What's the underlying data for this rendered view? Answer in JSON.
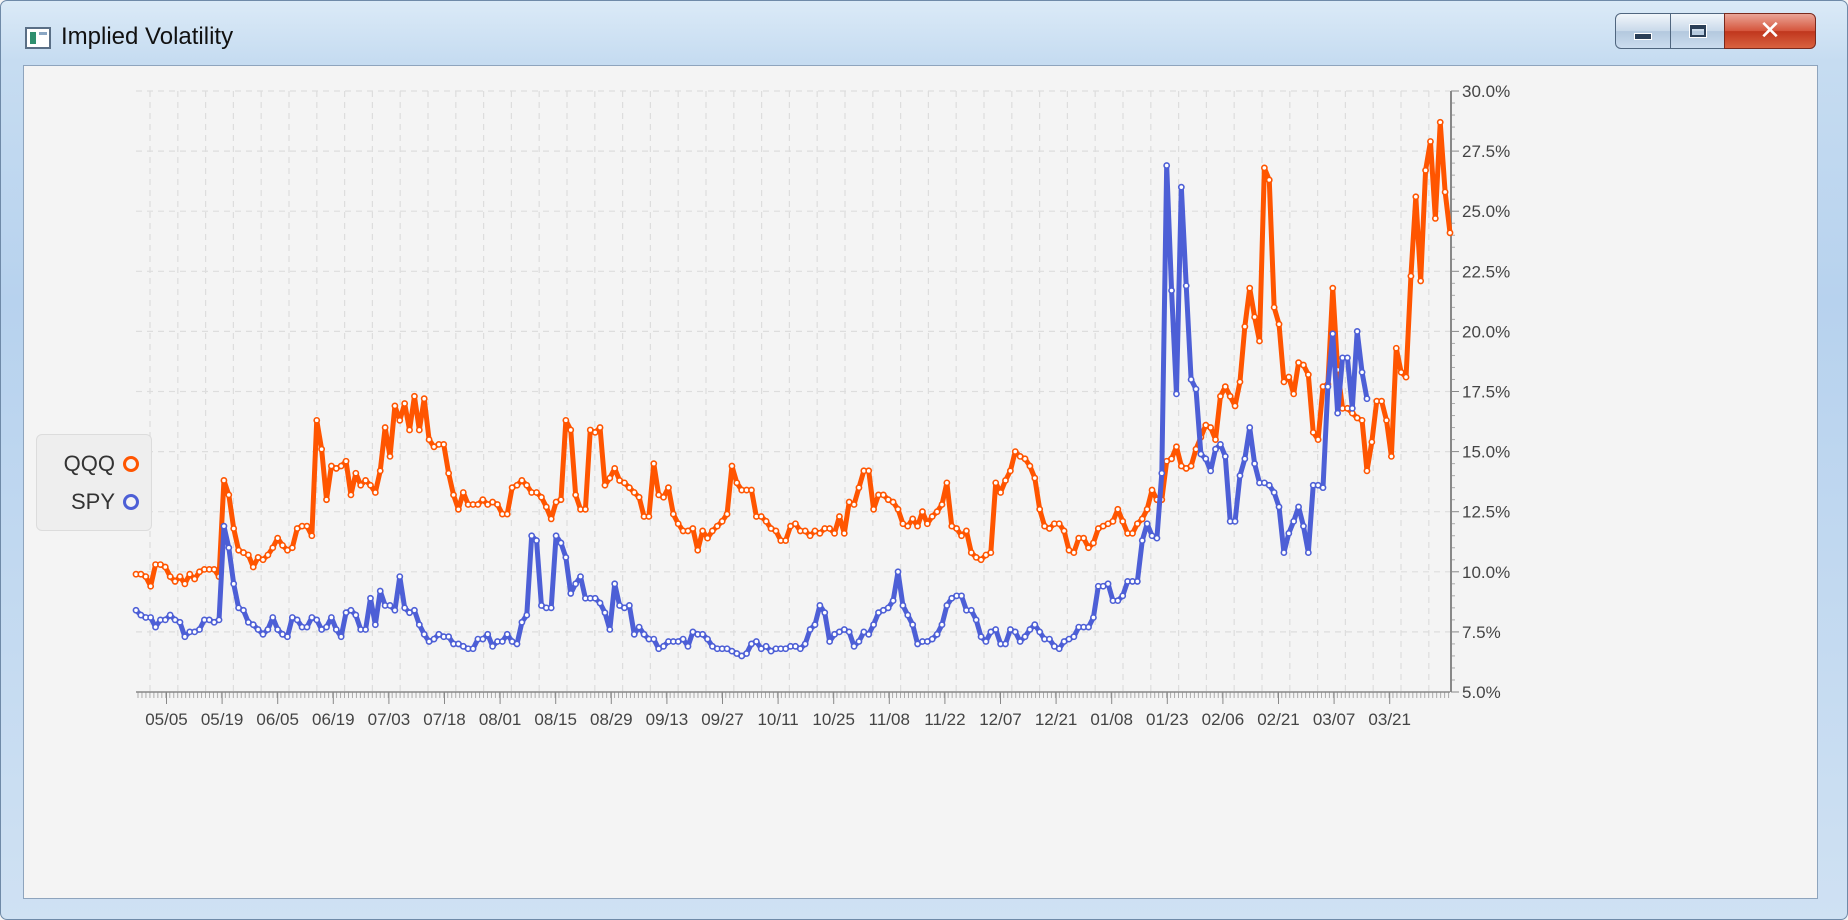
{
  "window": {
    "title": "Implied Volatility",
    "icon": "chart-window-icon",
    "controls": [
      "minimize-icon",
      "maximize-icon",
      "close-icon"
    ]
  },
  "colors": {
    "qqq": "#ff5500",
    "spy": "#4d5fd6",
    "grid": "#dddddd",
    "axis": "#888888"
  },
  "chart_data": {
    "type": "line",
    "title": "",
    "xlabel": "",
    "ylabel": "",
    "ylim": [
      5.0,
      30.0
    ],
    "y_ticks": [
      "5.0%",
      "7.5%",
      "10.0%",
      "12.5%",
      "15.0%",
      "17.5%",
      "20.0%",
      "22.5%",
      "25.0%",
      "27.5%",
      "30.0%"
    ],
    "x_tick_labels": [
      "05/05",
      "05/19",
      "06/05",
      "06/19",
      "07/03",
      "07/18",
      "08/01",
      "08/15",
      "08/29",
      "09/13",
      "09/27",
      "10/11",
      "10/25",
      "11/08",
      "11/22",
      "12/07",
      "12/21",
      "01/08",
      "01/23",
      "02/06",
      "02/21",
      "03/07",
      "03/21"
    ],
    "legend_position": "left",
    "grid": true,
    "series": [
      {
        "name": "QQQ",
        "values": [
          9.9,
          9.9,
          9.8,
          9.4,
          10.3,
          10.3,
          10.2,
          9.8,
          9.6,
          9.8,
          9.5,
          9.9,
          9.7,
          10.0,
          10.1,
          10.1,
          10.1,
          9.8,
          13.8,
          13.2,
          11.8,
          10.9,
          10.8,
          10.7,
          10.2,
          10.6,
          10.5,
          10.7,
          11.0,
          11.4,
          11.1,
          10.9,
          11.0,
          11.8,
          11.9,
          11.9,
          11.5,
          16.3,
          15.1,
          13.0,
          14.4,
          14.3,
          14.4,
          14.6,
          13.2,
          14.1,
          13.6,
          13.8,
          13.6,
          13.3,
          14.2,
          16.0,
          14.8,
          16.9,
          16.3,
          17.0,
          15.9,
          17.3,
          15.9,
          17.2,
          15.5,
          15.2,
          15.3,
          15.3,
          14.1,
          13.2,
          12.6,
          13.3,
          12.8,
          12.8,
          12.8,
          13.0,
          12.8,
          12.9,
          12.8,
          12.4,
          12.4,
          13.5,
          13.6,
          13.8,
          13.6,
          13.3,
          13.3,
          13.1,
          12.7,
          12.2,
          12.9,
          13.0,
          16.3,
          15.9,
          13.2,
          12.6,
          12.6,
          15.9,
          15.8,
          16.0,
          13.6,
          13.9,
          14.3,
          13.8,
          13.7,
          13.5,
          13.3,
          13.1,
          12.3,
          12.3,
          14.5,
          13.2,
          13.1,
          13.5,
          12.4,
          12.0,
          11.7,
          11.7,
          11.8,
          10.9,
          11.7,
          11.4,
          11.7,
          11.9,
          12.1,
          12.4,
          14.4,
          13.7,
          13.4,
          13.4,
          13.4,
          12.3,
          12.3,
          12.1,
          11.8,
          11.7,
          11.3,
          11.3,
          11.9,
          12.0,
          11.7,
          11.7,
          11.5,
          11.7,
          11.6,
          11.8,
          11.8,
          11.6,
          12.3,
          11.6,
          12.9,
          12.8,
          13.5,
          14.2,
          14.2,
          12.6,
          13.2,
          13.2,
          13.0,
          12.9,
          12.6,
          12.0,
          11.9,
          12.2,
          11.9,
          12.5,
          12.0,
          12.3,
          12.5,
          12.8,
          13.7,
          11.9,
          11.8,
          11.5,
          11.7,
          10.8,
          10.6,
          10.5,
          10.7,
          10.8,
          13.7,
          13.3,
          13.8,
          14.2,
          15.0,
          14.8,
          14.7,
          14.4,
          13.9,
          12.6,
          11.9,
          11.8,
          12.0,
          12.0,
          11.7,
          10.9,
          10.8,
          11.4,
          11.4,
          11.0,
          11.2,
          11.8,
          11.9,
          12.0,
          12.1,
          12.6,
          12.1,
          11.6,
          11.6,
          12.0,
          12.2,
          12.6,
          13.4,
          13.0,
          13.0,
          14.6,
          14.7,
          15.2,
          14.4,
          14.3,
          14.4,
          15.1,
          15.6,
          16.1,
          16.0,
          15.5,
          17.3,
          17.7,
          17.3,
          16.9,
          17.9,
          20.2,
          21.8,
          20.6,
          19.6,
          26.8,
          26.3,
          21.0,
          20.3,
          17.9,
          18.1,
          17.4,
          18.7,
          18.6,
          18.2,
          15.8,
          15.5,
          17.7,
          17.8,
          21.8,
          18.4,
          16.8,
          16.8,
          16.6,
          16.4,
          16.3,
          14.2,
          15.4,
          17.1,
          17.1,
          16.3,
          14.8,
          19.3,
          18.3,
          18.1,
          22.3,
          25.6,
          22.1,
          26.7,
          27.9,
          24.7,
          28.7,
          25.8,
          24.1
        ]
      },
      {
        "name": "SPY",
        "values": [
          8.4,
          8.2,
          8.1,
          8.1,
          7.7,
          8.0,
          8.0,
          8.2,
          8.0,
          7.9,
          7.3,
          7.5,
          7.5,
          7.6,
          8.0,
          8.0,
          7.9,
          8.0,
          11.9,
          11.0,
          9.5,
          8.5,
          8.4,
          7.9,
          7.8,
          7.6,
          7.4,
          7.6,
          8.1,
          7.6,
          7.4,
          7.3,
          8.1,
          8.0,
          7.7,
          7.7,
          8.1,
          8.0,
          7.6,
          7.7,
          8.1,
          7.6,
          7.3,
          8.3,
          8.4,
          8.2,
          7.6,
          7.6,
          8.9,
          7.8,
          9.2,
          8.6,
          8.6,
          8.4,
          9.8,
          8.5,
          8.3,
          8.4,
          7.8,
          7.4,
          7.1,
          7.2,
          7.4,
          7.3,
          7.3,
          7.0,
          7.0,
          6.9,
          6.8,
          6.8,
          7.2,
          7.2,
          7.4,
          6.9,
          7.1,
          7.1,
          7.4,
          7.1,
          7.0,
          7.9,
          8.2,
          11.5,
          11.3,
          8.6,
          8.5,
          8.5,
          11.5,
          11.2,
          10.6,
          9.1,
          9.5,
          9.8,
          8.9,
          8.9,
          8.9,
          8.7,
          8.3,
          7.6,
          9.5,
          8.6,
          8.5,
          8.6,
          7.4,
          7.7,
          7.4,
          7.2,
          7.2,
          6.8,
          6.9,
          7.1,
          7.1,
          7.1,
          7.2,
          6.9,
          7.5,
          7.4,
          7.4,
          7.2,
          6.9,
          6.8,
          6.8,
          6.8,
          6.7,
          6.6,
          6.5,
          6.6,
          7.0,
          7.1,
          6.8,
          6.9,
          6.7,
          6.8,
          6.8,
          6.8,
          6.9,
          6.9,
          6.8,
          7.0,
          7.6,
          7.8,
          8.6,
          8.3,
          7.1,
          7.4,
          7.5,
          7.6,
          7.5,
          6.9,
          7.1,
          7.5,
          7.4,
          7.8,
          8.3,
          8.4,
          8.5,
          8.8,
          10.0,
          8.6,
          8.2,
          7.8,
          7.0,
          7.1,
          7.1,
          7.2,
          7.4,
          7.8,
          8.6,
          8.9,
          9.0,
          9.0,
          8.4,
          8.4,
          8.0,
          7.3,
          7.1,
          7.5,
          7.6,
          7.0,
          7.0,
          7.6,
          7.5,
          7.1,
          7.3,
          7.6,
          7.8,
          7.5,
          7.2,
          7.2,
          6.9,
          6.8,
          7.1,
          7.2,
          7.3,
          7.7,
          7.7,
          7.7,
          8.1,
          9.4,
          9.4,
          9.5,
          8.8,
          8.8,
          9.0,
          9.6,
          9.6,
          9.6,
          11.3,
          12.0,
          11.5,
          11.4,
          14.1,
          26.9,
          21.7,
          17.4,
          26.0,
          21.9,
          18.0,
          17.6,
          14.9,
          14.7,
          14.2,
          15.1,
          15.3,
          14.8,
          12.1,
          12.1,
          14.0,
          14.7,
          16.0,
          14.5,
          13.7,
          13.7,
          13.6,
          13.3,
          12.7,
          10.8,
          11.6,
          12.1,
          12.7,
          11.9,
          10.8,
          13.6,
          13.6,
          13.5,
          17.7,
          19.9,
          16.6,
          18.9,
          18.9,
          16.8,
          20.0,
          18.3,
          17.2
        ]
      }
    ]
  }
}
